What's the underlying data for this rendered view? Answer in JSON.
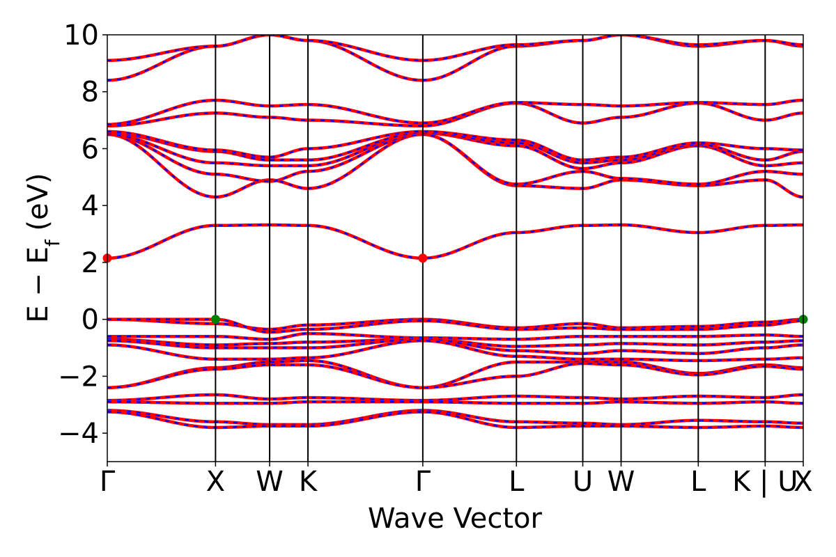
{
  "chart_data": {
    "type": "line",
    "title": "",
    "xlabel": "Wave Vector",
    "ylabel": "E − E_f (eV)",
    "ylabel_main": "E − E",
    "ylabel_sub": "f",
    "ylabel_tail": " (eV)",
    "ylim": [
      -5,
      10
    ],
    "yticks": [
      -4,
      -2,
      0,
      2,
      4,
      6,
      8,
      10
    ],
    "ytick_labels": [
      "−4",
      "−2",
      "0",
      "2",
      "4",
      "6",
      "8",
      "10"
    ],
    "kpath_labels": [
      "Γ",
      "X",
      "W",
      "K",
      "Γ",
      "L",
      "U",
      "W",
      "L",
      "K | U",
      "X"
    ],
    "kpath_positions": [
      0.0,
      1.0,
      1.5,
      1.854,
      2.915,
      3.78,
      4.393,
      4.747,
      5.46,
      6.078,
      6.43
    ],
    "grid": false,
    "legend": "none",
    "colors": {
      "band": "#ff0000",
      "band_overlay": "#0000ff",
      "cbm_marker": "#ff0000",
      "vbm_marker": "#008000"
    },
    "series": [
      {
        "segments": [
          [
            0,
            0.0
          ],
          [
            1,
            -0.15
          ],
          [
            1.5,
            -0.35
          ],
          [
            1.854,
            -0.2
          ],
          [
            2.915,
            0.0
          ],
          [
            3.78,
            -0.3
          ],
          [
            4.393,
            -0.15
          ],
          [
            4.747,
            -0.3
          ],
          [
            5.46,
            -0.25
          ],
          [
            6.078,
            -0.1
          ],
          [
            6.43,
            0.0
          ]
        ]
      },
      {
        "segments": [
          [
            0,
            0.0
          ],
          [
            1,
            0.0
          ],
          [
            1.5,
            -0.45
          ],
          [
            1.854,
            -0.35
          ],
          [
            2.915,
            -0.05
          ],
          [
            3.78,
            -0.35
          ],
          [
            4.393,
            -0.3
          ],
          [
            4.747,
            -0.35
          ],
          [
            5.46,
            -0.35
          ],
          [
            6.078,
            -0.2
          ],
          [
            6.43,
            -0.05
          ]
        ]
      },
      {
        "segments": [
          [
            0,
            -0.6
          ],
          [
            1,
            -0.6
          ],
          [
            1.5,
            -0.7
          ],
          [
            1.854,
            -0.5
          ],
          [
            2.915,
            -0.65
          ],
          [
            3.78,
            -0.7
          ],
          [
            4.393,
            -0.6
          ],
          [
            4.747,
            -0.6
          ],
          [
            5.46,
            -0.6
          ],
          [
            6.078,
            -0.55
          ],
          [
            6.43,
            -0.6
          ]
        ]
      },
      {
        "segments": [
          [
            0,
            -0.7
          ],
          [
            1,
            -0.9
          ],
          [
            1.5,
            -0.85
          ],
          [
            1.854,
            -0.8
          ],
          [
            2.915,
            -0.7
          ],
          [
            3.78,
            -0.95
          ],
          [
            4.393,
            -0.9
          ],
          [
            4.747,
            -0.85
          ],
          [
            5.46,
            -0.9
          ],
          [
            6.078,
            -0.8
          ],
          [
            6.43,
            -0.75
          ]
        ]
      },
      {
        "segments": [
          [
            0,
            -0.75
          ],
          [
            1,
            -1.0
          ],
          [
            1.5,
            -1.0
          ],
          [
            1.854,
            -1.0
          ],
          [
            2.915,
            -0.7
          ],
          [
            3.78,
            -1.1
          ],
          [
            4.393,
            -1.2
          ],
          [
            4.747,
            -1.1
          ],
          [
            5.46,
            -1.2
          ],
          [
            6.078,
            -1.0
          ],
          [
            6.43,
            -0.9
          ]
        ]
      },
      {
        "segments": [
          [
            0,
            -0.9
          ],
          [
            1,
            -1.4
          ],
          [
            1.5,
            -1.4
          ],
          [
            1.854,
            -1.35
          ],
          [
            2.915,
            -0.75
          ],
          [
            3.78,
            -1.3
          ],
          [
            4.393,
            -1.4
          ],
          [
            4.747,
            -1.4
          ],
          [
            5.46,
            -1.45
          ],
          [
            6.078,
            -1.4
          ],
          [
            6.43,
            -1.35
          ]
        ]
      },
      {
        "segments": [
          [
            0,
            -2.4
          ],
          [
            1,
            -1.7
          ],
          [
            1.5,
            -1.5
          ],
          [
            1.854,
            -1.45
          ],
          [
            2.915,
            -2.4
          ],
          [
            3.78,
            -1.5
          ],
          [
            4.393,
            -1.5
          ],
          [
            4.747,
            -1.5
          ],
          [
            5.46,
            -1.9
          ],
          [
            6.078,
            -1.6
          ],
          [
            6.43,
            -1.7
          ]
        ]
      },
      {
        "segments": [
          [
            0,
            -2.4
          ],
          [
            1,
            -1.75
          ],
          [
            1.5,
            -1.6
          ],
          [
            1.854,
            -1.6
          ],
          [
            2.915,
            -2.4
          ],
          [
            3.78,
            -2.0
          ],
          [
            4.393,
            -1.55
          ],
          [
            4.747,
            -1.6
          ],
          [
            5.46,
            -1.95
          ],
          [
            6.078,
            -1.65
          ],
          [
            6.43,
            -1.75
          ]
        ]
      },
      {
        "segments": [
          [
            0,
            -2.85
          ],
          [
            1,
            -2.65
          ],
          [
            1.5,
            -2.8
          ],
          [
            1.854,
            -2.75
          ],
          [
            2.915,
            -2.85
          ],
          [
            3.78,
            -2.7
          ],
          [
            4.393,
            -2.75
          ],
          [
            4.747,
            -2.8
          ],
          [
            5.46,
            -2.7
          ],
          [
            6.078,
            -2.75
          ],
          [
            6.43,
            -2.65
          ]
        ]
      },
      {
        "segments": [
          [
            0,
            -2.9
          ],
          [
            1,
            -2.95
          ],
          [
            1.5,
            -2.95
          ],
          [
            1.854,
            -2.9
          ],
          [
            2.915,
            -2.9
          ],
          [
            3.78,
            -2.95
          ],
          [
            4.393,
            -2.95
          ],
          [
            4.747,
            -2.9
          ],
          [
            5.46,
            -2.95
          ],
          [
            6.078,
            -2.9
          ],
          [
            6.43,
            -2.95
          ]
        ]
      },
      {
        "segments": [
          [
            0,
            -3.2
          ],
          [
            1,
            -3.6
          ],
          [
            1.5,
            -3.7
          ],
          [
            1.854,
            -3.7
          ],
          [
            2.915,
            -3.2
          ],
          [
            3.78,
            -3.6
          ],
          [
            4.393,
            -3.65
          ],
          [
            4.747,
            -3.7
          ],
          [
            5.46,
            -3.55
          ],
          [
            6.078,
            -3.6
          ],
          [
            6.43,
            -3.65
          ]
        ]
      },
      {
        "segments": [
          [
            0,
            -3.25
          ],
          [
            1,
            -3.8
          ],
          [
            1.5,
            -3.75
          ],
          [
            1.854,
            -3.75
          ],
          [
            2.915,
            -3.25
          ],
          [
            3.78,
            -3.8
          ],
          [
            4.393,
            -3.75
          ],
          [
            4.747,
            -3.75
          ],
          [
            5.46,
            -3.8
          ],
          [
            6.078,
            -3.75
          ],
          [
            6.43,
            -3.8
          ]
        ]
      },
      {
        "segments": [
          [
            0,
            2.15
          ],
          [
            1,
            3.3
          ],
          [
            1.5,
            3.32
          ],
          [
            1.854,
            3.3
          ],
          [
            2.915,
            2.15
          ],
          [
            3.78,
            3.05
          ],
          [
            4.393,
            3.3
          ],
          [
            4.747,
            3.32
          ],
          [
            5.46,
            3.05
          ],
          [
            6.078,
            3.3
          ],
          [
            6.43,
            3.32
          ]
        ]
      },
      {
        "segments": [
          [
            0,
            6.5
          ],
          [
            1,
            4.3
          ],
          [
            1.5,
            4.9
          ],
          [
            1.854,
            4.6
          ],
          [
            2.915,
            6.5
          ],
          [
            3.78,
            4.7
          ],
          [
            4.393,
            4.6
          ],
          [
            4.747,
            4.9
          ],
          [
            5.46,
            4.7
          ],
          [
            6.078,
            4.9
          ],
          [
            6.43,
            4.3
          ]
        ]
      },
      {
        "segments": [
          [
            0,
            6.5
          ],
          [
            1,
            5.1
          ],
          [
            1.5,
            4.85
          ],
          [
            1.854,
            5.2
          ],
          [
            2.915,
            6.5
          ],
          [
            3.78,
            4.75
          ],
          [
            4.393,
            5.2
          ],
          [
            4.747,
            4.95
          ],
          [
            5.46,
            4.75
          ],
          [
            6.078,
            5.2
          ],
          [
            6.43,
            5.1
          ]
        ]
      },
      {
        "segments": [
          [
            0,
            6.5
          ],
          [
            1,
            5.5
          ],
          [
            1.5,
            5.4
          ],
          [
            1.854,
            5.4
          ],
          [
            2.915,
            6.55
          ],
          [
            3.78,
            6.1
          ],
          [
            4.393,
            5.3
          ],
          [
            4.747,
            5.5
          ],
          [
            5.46,
            6.1
          ],
          [
            6.078,
            5.4
          ],
          [
            6.43,
            5.5
          ]
        ]
      },
      {
        "segments": [
          [
            0,
            6.55
          ],
          [
            1,
            5.9
          ],
          [
            1.5,
            5.6
          ],
          [
            1.854,
            5.6
          ],
          [
            2.915,
            6.55
          ],
          [
            3.78,
            6.2
          ],
          [
            4.393,
            5.5
          ],
          [
            4.747,
            5.6
          ],
          [
            5.46,
            6.15
          ],
          [
            6.078,
            5.6
          ],
          [
            6.43,
            5.9
          ]
        ]
      },
      {
        "segments": [
          [
            0,
            6.6
          ],
          [
            1,
            5.95
          ],
          [
            1.5,
            5.7
          ],
          [
            1.854,
            6.0
          ],
          [
            2.915,
            6.6
          ],
          [
            3.78,
            6.3
          ],
          [
            4.393,
            5.6
          ],
          [
            4.747,
            5.7
          ],
          [
            5.46,
            6.2
          ],
          [
            6.078,
            6.0
          ],
          [
            6.43,
            5.95
          ]
        ]
      },
      {
        "segments": [
          [
            0,
            6.8
          ],
          [
            1,
            7.25
          ],
          [
            1.5,
            7.1
          ],
          [
            1.854,
            7.0
          ],
          [
            2.915,
            6.8
          ],
          [
            3.78,
            7.6
          ],
          [
            4.393,
            6.9
          ],
          [
            4.747,
            7.1
          ],
          [
            5.46,
            7.6
          ],
          [
            6.078,
            7.0
          ],
          [
            6.43,
            7.25
          ]
        ]
      },
      {
        "segments": [
          [
            0,
            6.85
          ],
          [
            1,
            7.7
          ],
          [
            1.5,
            7.5
          ],
          [
            1.854,
            7.55
          ],
          [
            2.915,
            6.9
          ],
          [
            3.78,
            7.62
          ],
          [
            4.393,
            7.55
          ],
          [
            4.747,
            7.5
          ],
          [
            5.46,
            7.62
          ],
          [
            6.078,
            7.55
          ],
          [
            6.43,
            7.7
          ]
        ]
      },
      {
        "segments": [
          [
            0,
            8.4
          ],
          [
            1,
            9.6
          ],
          [
            1.5,
            10.0
          ],
          [
            1.854,
            9.8
          ],
          [
            2.915,
            8.4
          ],
          [
            3.78,
            9.6
          ],
          [
            4.393,
            9.8
          ],
          [
            4.747,
            10.0
          ],
          [
            5.46,
            9.6
          ],
          [
            6.078,
            9.8
          ],
          [
            6.43,
            9.6
          ]
        ]
      },
      {
        "segments": [
          [
            0,
            9.1
          ],
          [
            1,
            9.6
          ],
          [
            1.5,
            10.0
          ],
          [
            1.854,
            9.8
          ],
          [
            2.915,
            9.1
          ],
          [
            3.78,
            9.65
          ],
          [
            4.393,
            9.8
          ],
          [
            4.747,
            10.0
          ],
          [
            5.46,
            9.65
          ],
          [
            6.078,
            9.8
          ],
          [
            6.43,
            9.65
          ]
        ]
      }
    ],
    "markers": [
      {
        "kind": "cbm",
        "x": 0.0,
        "y": 2.15
      },
      {
        "kind": "cbm",
        "x": 2.915,
        "y": 2.15
      },
      {
        "kind": "vbm",
        "x": 1.0,
        "y": 0.0
      },
      {
        "kind": "vbm",
        "x": 6.43,
        "y": 0.0
      }
    ]
  }
}
